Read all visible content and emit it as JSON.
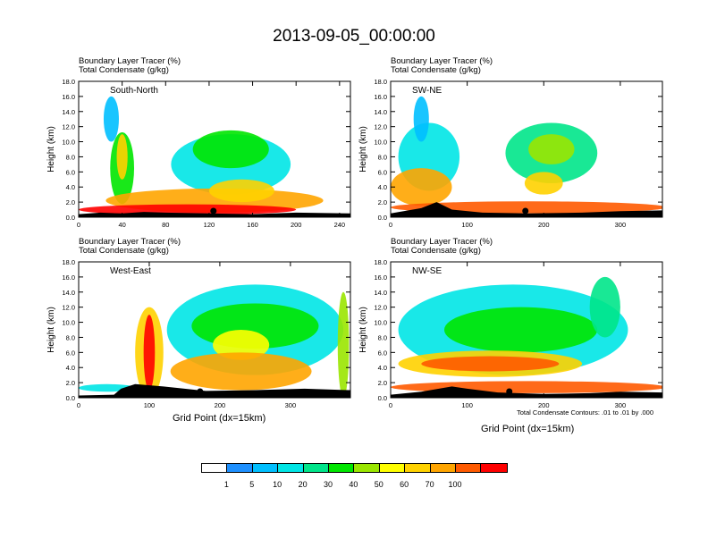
{
  "title": "2013-09-05_00:00:00",
  "colors": {
    "white": "#ffffff",
    "levels": [
      "#ffffff",
      "#1e90ff",
      "#00bfff",
      "#00e5e5",
      "#00e58a",
      "#00e600",
      "#9ae600",
      "#ffff00",
      "#ffd200",
      "#ffa500",
      "#ff5a00",
      "#ff0000"
    ]
  },
  "colorbar": {
    "labels": [
      "1",
      "5",
      "10",
      "20",
      "30",
      "40",
      "50",
      "60",
      "70",
      "100"
    ]
  },
  "contour_note": "Total Condensate Contours: .01 to .01 by .000",
  "chart_data": [
    {
      "type": "heatmap",
      "title_line1": "Boundary Layer Tracer    (%)",
      "title_line2": "Total Condensate    (g/kg)",
      "panel_label": "South-North",
      "ylabel": "Height (km)",
      "xlabel": "",
      "xlim": [
        0,
        250
      ],
      "ylim": [
        0,
        18
      ],
      "xticks": [
        "0",
        "40",
        "80",
        "120",
        "160",
        "200",
        "240"
      ],
      "xtick_values": [
        0,
        40,
        80,
        120,
        160,
        200,
        240
      ],
      "yticks": [
        "0.0",
        "2.0",
        "4.0",
        "6.0",
        "8.0",
        "10.0",
        "12.0",
        "14.0",
        "16.0",
        "18.0"
      ],
      "marker_x": 124,
      "terrain": [
        [
          0,
          0.4
        ],
        [
          20,
          0.6
        ],
        [
          40,
          0.5
        ],
        [
          60,
          0.7
        ],
        [
          80,
          0.6
        ],
        [
          120,
          0.5
        ],
        [
          160,
          0.4
        ],
        [
          200,
          0.6
        ],
        [
          250,
          0.5
        ]
      ],
      "blobs": [
        {
          "x": 40,
          "y": 6.5,
          "w": 22,
          "h": 9.5,
          "level": 5
        },
        {
          "x": 40,
          "y": 8,
          "w": 10,
          "h": 6,
          "level": 8
        },
        {
          "x": 140,
          "y": 7,
          "w": 110,
          "h": 8,
          "level": 3
        },
        {
          "x": 140,
          "y": 9,
          "w": 70,
          "h": 5,
          "level": 5
        },
        {
          "x": 125,
          "y": 2.2,
          "w": 200,
          "h": 3.2,
          "level": 9
        },
        {
          "x": 150,
          "y": 3.5,
          "w": 60,
          "h": 3,
          "level": 8
        },
        {
          "x": 30,
          "y": 13,
          "w": 14,
          "h": 6,
          "level": 2
        },
        {
          "x": 100,
          "y": 1,
          "w": 200,
          "h": 1.4,
          "level": 11
        }
      ]
    },
    {
      "type": "heatmap",
      "title_line1": "Boundary Layer Tracer    (%)",
      "title_line2": "Total Condensate    (g/kg)",
      "panel_label": "SW-NE",
      "ylabel": "Height (km)",
      "xlabel": "",
      "xlim": [
        0,
        355
      ],
      "ylim": [
        0,
        18
      ],
      "xticks": [
        "0",
        "100",
        "200",
        "300"
      ],
      "xtick_values": [
        0,
        100,
        200,
        300
      ],
      "yticks": [
        "0.0",
        "2.0",
        "4.0",
        "6.0",
        "8.0",
        "10.0",
        "12.0",
        "14.0",
        "16.0",
        "18.0"
      ],
      "marker_x": 176,
      "terrain": [
        [
          0,
          0.5
        ],
        [
          40,
          1.2
        ],
        [
          60,
          2.0
        ],
        [
          80,
          1.0
        ],
        [
          120,
          0.6
        ],
        [
          180,
          0.5
        ],
        [
          250,
          0.6
        ],
        [
          300,
          0.8
        ],
        [
          355,
          0.9
        ]
      ],
      "blobs": [
        {
          "x": 50,
          "y": 8,
          "w": 80,
          "h": 9,
          "level": 3
        },
        {
          "x": 210,
          "y": 8.5,
          "w": 120,
          "h": 8,
          "level": 4
        },
        {
          "x": 210,
          "y": 9,
          "w": 60,
          "h": 4,
          "level": 6
        },
        {
          "x": 40,
          "y": 4,
          "w": 80,
          "h": 5,
          "level": 9
        },
        {
          "x": 180,
          "y": 1.3,
          "w": 360,
          "h": 1.6,
          "level": 10
        },
        {
          "x": 200,
          "y": 4.5,
          "w": 50,
          "h": 3,
          "level": 8
        },
        {
          "x": 40,
          "y": 13,
          "w": 20,
          "h": 6,
          "level": 2
        }
      ]
    },
    {
      "type": "heatmap",
      "title_line1": "Boundary Layer Tracer    (%)",
      "title_line2": "Total Condensate    (g/kg)",
      "panel_label": "West-East",
      "ylabel": "Height (km)",
      "xlabel": "Grid Point (dx=15km)",
      "xlim": [
        0,
        385
      ],
      "ylim": [
        0,
        18
      ],
      "xticks": [
        "0",
        "100",
        "200",
        "300"
      ],
      "xtick_values": [
        0,
        100,
        200,
        300
      ],
      "yticks": [
        "0.0",
        "2.0",
        "4.0",
        "6.0",
        "8.0",
        "10.0",
        "12.0",
        "14.0",
        "16.0",
        "18.0"
      ],
      "marker_x": 172,
      "terrain": [
        [
          0,
          0.3
        ],
        [
          50,
          0.4
        ],
        [
          60,
          1.2
        ],
        [
          80,
          1.8
        ],
        [
          120,
          1.5
        ],
        [
          180,
          0.9
        ],
        [
          250,
          1.0
        ],
        [
          320,
          1.2
        ],
        [
          385,
          1.0
        ]
      ],
      "blobs": [
        {
          "x": 250,
          "y": 9,
          "w": 250,
          "h": 12,
          "level": 3
        },
        {
          "x": 250,
          "y": 9.5,
          "w": 180,
          "h": 6,
          "level": 5
        },
        {
          "x": 230,
          "y": 7,
          "w": 80,
          "h": 4,
          "level": 7
        },
        {
          "x": 100,
          "y": 6,
          "w": 40,
          "h": 12,
          "level": 8
        },
        {
          "x": 100,
          "y": 6,
          "w": 16,
          "h": 10,
          "level": 11
        },
        {
          "x": 230,
          "y": 3.5,
          "w": 200,
          "h": 5,
          "level": 9
        },
        {
          "x": 375,
          "y": 7,
          "w": 16,
          "h": 14,
          "level": 6
        },
        {
          "x": 40,
          "y": 1.3,
          "w": 80,
          "h": 1,
          "level": 3
        }
      ]
    },
    {
      "type": "heatmap",
      "title_line1": "Boundary Layer Tracer    (%)",
      "title_line2": "Total Condensate    (g/kg)",
      "panel_label": "NW-SE",
      "ylabel": "Height (km)",
      "xlabel": "Grid Point (dx=15km)",
      "xlim": [
        0,
        355
      ],
      "ylim": [
        0,
        18
      ],
      "xticks": [
        "0",
        "100",
        "200",
        "300"
      ],
      "xtick_values": [
        0,
        100,
        200,
        300
      ],
      "yticks": [
        "0.0",
        "2.0",
        "4.0",
        "6.0",
        "8.0",
        "10.0",
        "12.0",
        "14.0",
        "16.0",
        "18.0"
      ],
      "marker_x": 155,
      "terrain": [
        [
          0,
          0.4
        ],
        [
          40,
          0.8
        ],
        [
          80,
          1.5
        ],
        [
          100,
          1.2
        ],
        [
          140,
          0.7
        ],
        [
          200,
          0.5
        ],
        [
          260,
          0.6
        ],
        [
          300,
          0.8
        ],
        [
          355,
          0.7
        ]
      ],
      "blobs": [
        {
          "x": 160,
          "y": 9,
          "w": 300,
          "h": 12,
          "level": 3
        },
        {
          "x": 170,
          "y": 9,
          "w": 200,
          "h": 6,
          "level": 5
        },
        {
          "x": 130,
          "y": 4.5,
          "w": 240,
          "h": 3.5,
          "level": 8
        },
        {
          "x": 130,
          "y": 4.5,
          "w": 180,
          "h": 2,
          "level": 10
        },
        {
          "x": 280,
          "y": 12,
          "w": 40,
          "h": 8,
          "level": 4
        },
        {
          "x": 180,
          "y": 1.4,
          "w": 360,
          "h": 1.6,
          "level": 10
        }
      ]
    }
  ]
}
